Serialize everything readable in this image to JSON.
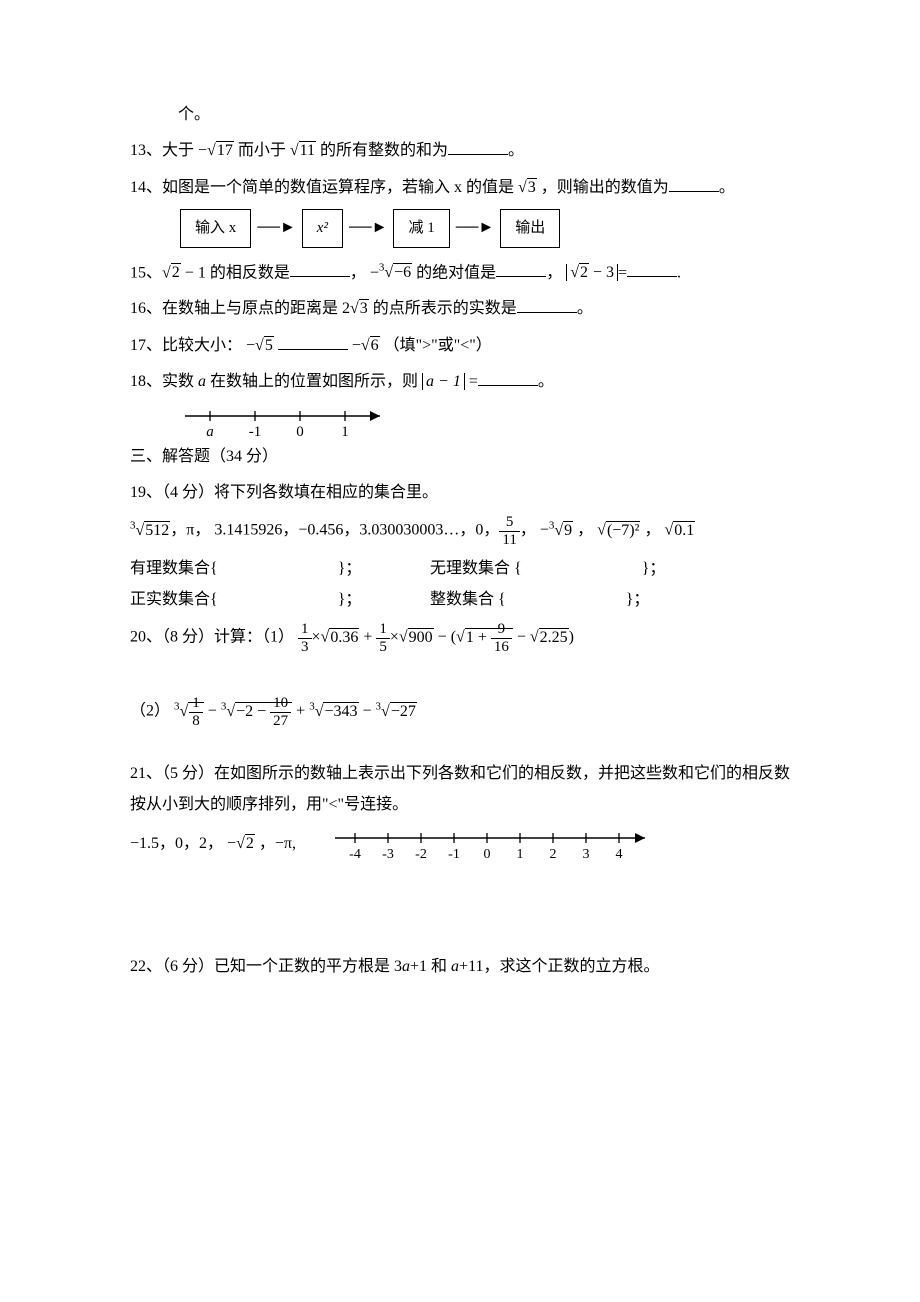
{
  "q12_tail": "个。",
  "q13_pre": "13、大于 ",
  "q13_neg": "−",
  "q13_r1": "17",
  "q13_mid": " 而小于 ",
  "q13_r2": "11",
  "q13_post": " 的所有整数的和为",
  "period": "。",
  "q14_a": "14、如图是一个简单的数值运算程序，若输入 x 的值是 ",
  "q14_r": "3",
  "q14_b": " ，则输出的数值为",
  "flow_in": "输入 x",
  "flow_sq": "x²",
  "flow_sub": "减 1",
  "flow_out": "输出",
  "q15_a": "15、",
  "q15_r1": "2",
  "q15_m1": " − 1 的相反数是",
  "q15_m2": "，  −",
  "q15_cbrt_neg6": "−6",
  "q15_m3": " 的绝对值是",
  "q15_m4": "， ",
  "q15_abs_a": "2",
  "q15_abs_m": " − 3",
  "q15_eq": "=",
  "q15_dot": ".",
  "q16": "16、在数轴上与原点的距离是 2",
  "q16_r": "3",
  "q16_b": " 的点所表示的实数是",
  "q17_a": "17、比较大小：  −",
  "q17_r1": "5",
  "q17_r2": "6",
  "q17_neg": " −",
  "q17_b": "  （填\">\"或\"<\"）",
  "q18_a": "18、实数 ",
  "q18_var": "a",
  "q18_b": " 在数轴上的位置如图所示，则 ",
  "q18_abs": "a − 1",
  "q18_eq": " =",
  "axis18_labels": [
    "a",
    "-1",
    "0",
    "1"
  ],
  "sec3": "三、解答题（34 分）",
  "q19_a": "19、（4 分）将下列各数填在相应的集合里。",
  "q19_list_cbrt512": "512",
  "q19_list_b": "，π，  3.1415926，−0.456，3.030030003…，0，",
  "q19_frac_n": "5",
  "q19_frac_d": "11",
  "q19_list_c": "，  −",
  "q19_cbrt9": "9",
  "q19_list_d": " ， ",
  "q19_sqrt_neg7sq": "(−7)²",
  "q19_list_e": " ， ",
  "q19_sqrt01": "0.1",
  "q19_row1a": "有理数集合{",
  "q19_row1b": "}；",
  "q19_row1c": "无理数集合 {",
  "q19_row2a": "正实数集合{",
  "q19_row2c": "整数集合 {",
  "q20_a": "20、（8 分）计算：（1）",
  "q20_1_fr1n": "1",
  "q20_1_fr1d": "3",
  "q20_1_times1": "×",
  "q20_1_r1": "0.36",
  "q20_1_plus": " + ",
  "q20_1_fr2n": "1",
  "q20_1_fr2d": "5",
  "q20_1_r2": "900",
  "q20_1_min": " − (",
  "q20_1_inner_plus": "1 + ",
  "q20_1_fr3n": "9",
  "q20_1_fr3d": "16",
  "q20_1_r3": "2.25",
  "q20_1_close": ")",
  "q20_2_a": "（2）",
  "q20_2_fr1n": "1",
  "q20_2_fr1d": "8",
  "q20_2_min": " − ",
  "q20_2_inner": "−2 − ",
  "q20_2_fr2n": "10",
  "q20_2_fr2d": "27",
  "q20_2_plus": " + ",
  "q20_2_r3": "−343",
  "q20_2_r4": "−27",
  "q21_a": "21、（5 分）在如图所示的数轴上表示出下列各数和它们的相反数，并把这些数和它们的相反数按从小到大的顺序排列，用\"<\"号连接。",
  "q21_nums_a": "−1.5，0，2，  −",
  "q21_nums_r": "2",
  "q21_nums_b": " ，−π,",
  "axis21_labels": [
    "-4",
    "-3",
    "-2",
    "-1",
    "0",
    "1",
    "2",
    "3",
    "4"
  ],
  "q22": "22、（6 分）已知一个正数的平方根是 3a+1 和 a+11，求这个正数的立方根。",
  "cbrt_idx": "3"
}
